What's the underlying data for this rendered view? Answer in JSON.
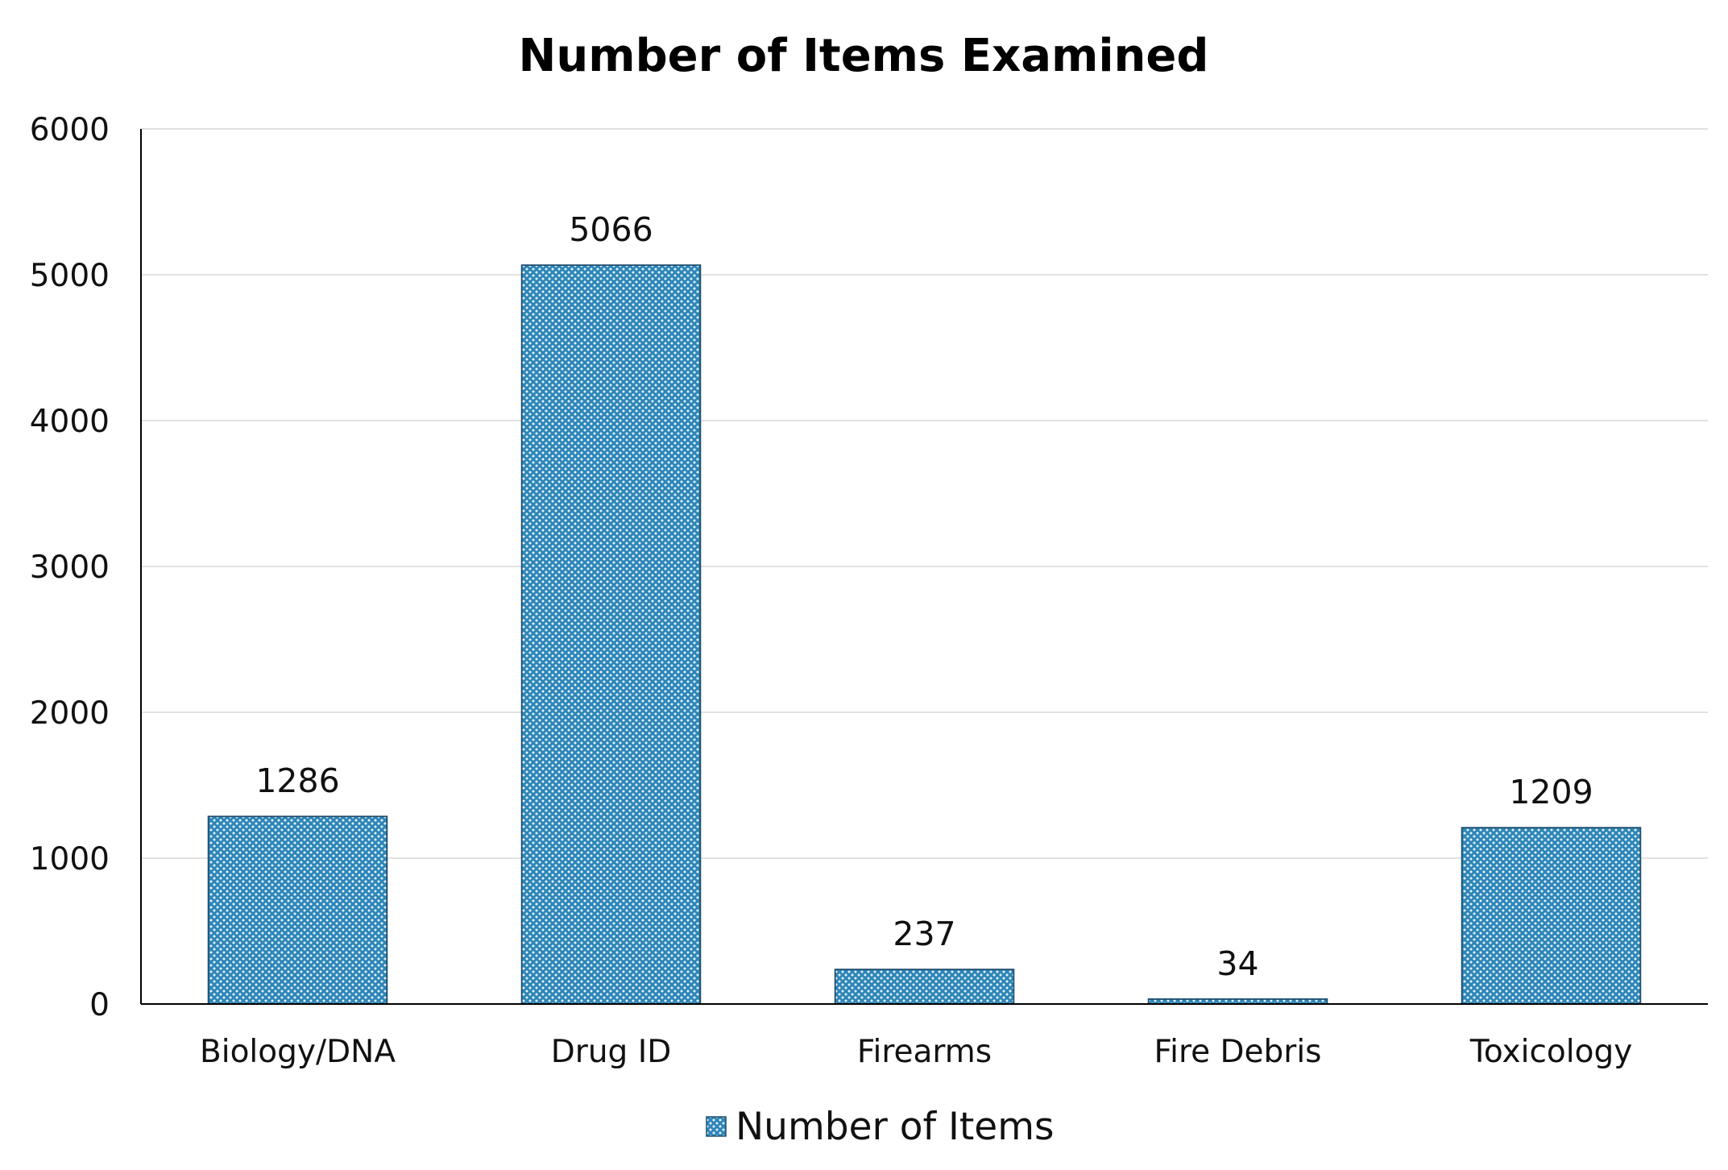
{
  "chart_data": {
    "type": "bar",
    "title": "Number of Items Examined",
    "xlabel": "",
    "ylabel": "",
    "categories": [
      "Biology/DNA",
      "Drug ID",
      "Firearms",
      "Fire Debris",
      "Toxicology"
    ],
    "series": [
      {
        "name": "Number of Items",
        "values": [
          1286,
          5066,
          237,
          34,
          1209
        ]
      }
    ],
    "ylim": [
      0,
      6000
    ],
    "yticks": [
      0,
      1000,
      2000,
      3000,
      4000,
      5000,
      6000
    ],
    "grid": true,
    "legend": "bottom",
    "data_labels": true,
    "colors": {
      "bar_fill": "#2e86b8",
      "bar_dots": "#e6f2fa",
      "bar_edge": "#1f4e6e"
    }
  }
}
